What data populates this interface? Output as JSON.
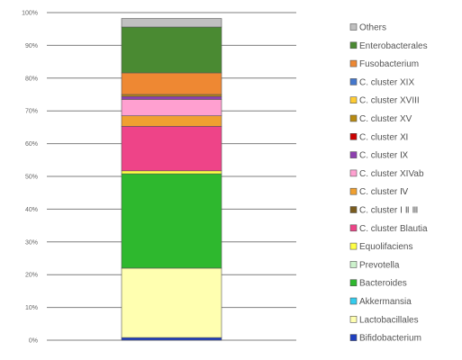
{
  "chart_data": {
    "type": "bar",
    "stacked": true,
    "orientation": "vertical",
    "categories": [
      ""
    ],
    "ylim": [
      0,
      100
    ],
    "yticks": [
      "0%",
      "10%",
      "20%",
      "30%",
      "40%",
      "50%",
      "60%",
      "70%",
      "80%",
      "90%",
      "100%"
    ],
    "grid": true,
    "legend_position": "right",
    "series": [
      {
        "name": "Bifidobacterium",
        "values": [
          0.8
        ],
        "color": "#1f3fbf"
      },
      {
        "name": "Lactobacillales",
        "values": [
          21.2
        ],
        "color": "#ffffb0"
      },
      {
        "name": "Akkermansia",
        "values": [
          0.0
        ],
        "color": "#33ccee"
      },
      {
        "name": "Bacteroides",
        "values": [
          28.8
        ],
        "color": "#2eb82e"
      },
      {
        "name": "Prevotella",
        "values": [
          0.0
        ],
        "color": "#ccf2cc"
      },
      {
        "name": "Equolifaciens",
        "values": [
          0.9
        ],
        "color": "#ffff44"
      },
      {
        "name": "C. cluster Blautia",
        "values": [
          13.6
        ],
        "color": "#ee4488"
      },
      {
        "name": "C. cluster Ⅰ Ⅱ Ⅲ",
        "values": [
          0.0
        ],
        "color": "#7a5c1e"
      },
      {
        "name": "C. cluster Ⅳ",
        "values": [
          3.2
        ],
        "color": "#f0a030"
      },
      {
        "name": "C. cluster XIVab",
        "values": [
          5.0
        ],
        "color": "#ffa0d0"
      },
      {
        "name": "C. cluster Ⅸ",
        "values": [
          0.9
        ],
        "color": "#8e3fb0"
      },
      {
        "name": "C. cluster Ⅺ",
        "values": [
          0.0
        ],
        "color": "#cc0000"
      },
      {
        "name": "C. cluster XV",
        "values": [
          0.6
        ],
        "color": "#b88a10"
      },
      {
        "name": "C. cluster XVIII",
        "values": [
          0.0
        ],
        "color": "#ffcc33"
      },
      {
        "name": "C. cluster XIX",
        "values": [
          0.0
        ],
        "color": "#4477cc"
      },
      {
        "name": "Fusobacterium",
        "values": [
          6.6
        ],
        "color": "#ee8833"
      },
      {
        "name": "Enterobacterales",
        "values": [
          14.0
        ],
        "color": "#4a8a32"
      },
      {
        "name": "Others",
        "values": [
          2.6
        ],
        "color": "#c0c0c0"
      }
    ]
  }
}
